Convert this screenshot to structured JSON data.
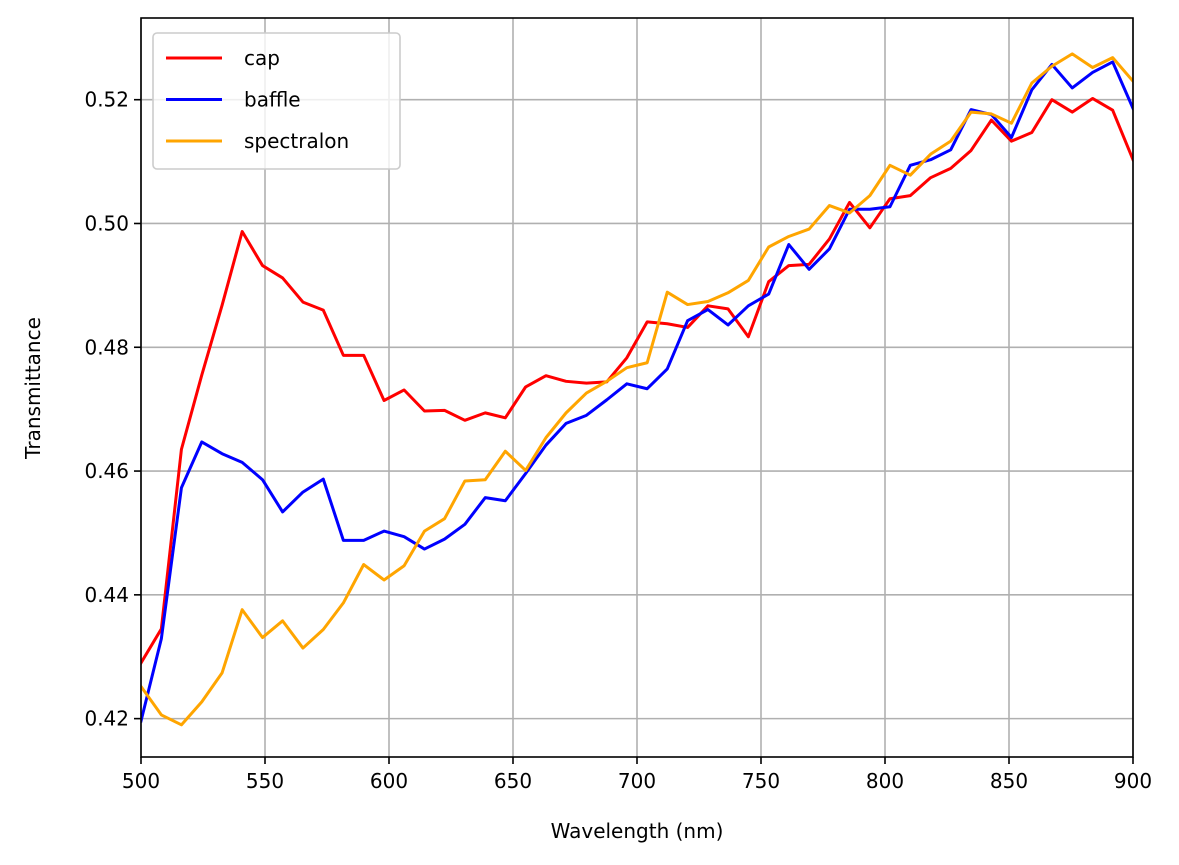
{
  "chart_data": {
    "type": "line",
    "xlabel": "Wavelength (nm)",
    "ylabel": "Transmittance",
    "xlim": [
      500,
      900
    ],
    "ylim": [
      0.4138,
      0.5332
    ],
    "xticks": [
      500,
      550,
      600,
      650,
      700,
      750,
      800,
      850,
      900
    ],
    "yticks": [
      0.42,
      0.44,
      0.46,
      0.48,
      0.5,
      0.52
    ],
    "grid": true,
    "legend_position": "top-left",
    "x": [
      500,
      508.2,
      516.3,
      524.5,
      532.7,
      540.8,
      549,
      557.1,
      565.3,
      573.5,
      581.6,
      589.8,
      598,
      606.1,
      614.3,
      622.4,
      630.6,
      638.8,
      646.9,
      655.1,
      663.3,
      671.4,
      679.6,
      687.8,
      695.9,
      704.1,
      712.2,
      720.4,
      728.6,
      736.7,
      744.9,
      753.1,
      761.2,
      769.4,
      777.6,
      785.7,
      793.9,
      802,
      810.2,
      818.4,
      826.5,
      834.7,
      842.9,
      851,
      859.2,
      867.3,
      875.5,
      883.7,
      891.8,
      900
    ],
    "series": [
      {
        "name": "cap",
        "color": "#ff0000",
        "values": [
          0.429,
          0.4345,
          0.4635,
          0.4755,
          0.4868,
          0.4987,
          0.4932,
          0.4912,
          0.4873,
          0.486,
          0.4787,
          0.4787,
          0.4714,
          0.4731,
          0.4697,
          0.4698,
          0.4682,
          0.4694,
          0.4686,
          0.4736,
          0.4754,
          0.4745,
          0.4742,
          0.4744,
          0.4783,
          0.4841,
          0.4838,
          0.4832,
          0.4867,
          0.4862,
          0.4817,
          0.4906,
          0.4932,
          0.4934,
          0.4975,
          0.5034,
          0.4993,
          0.504,
          0.5045,
          0.5074,
          0.5089,
          0.5118,
          0.5167,
          0.5133,
          0.5147,
          0.52,
          0.518,
          0.5202,
          0.5183,
          0.5103
        ]
      },
      {
        "name": "baffle",
        "color": "#0000ff",
        "values": [
          0.4196,
          0.4329,
          0.4573,
          0.4647,
          0.4628,
          0.4614,
          0.4586,
          0.4534,
          0.4566,
          0.4587,
          0.4488,
          0.4488,
          0.4503,
          0.4494,
          0.4474,
          0.449,
          0.4514,
          0.4557,
          0.4552,
          0.4596,
          0.4642,
          0.4677,
          0.469,
          0.4715,
          0.4741,
          0.4733,
          0.4765,
          0.4843,
          0.4861,
          0.4836,
          0.4867,
          0.4886,
          0.4966,
          0.4926,
          0.4959,
          0.5023,
          0.5023,
          0.5027,
          0.5094,
          0.5103,
          0.5119,
          0.5184,
          0.5176,
          0.5139,
          0.5216,
          0.5257,
          0.5219,
          0.5244,
          0.5261,
          0.5186
        ]
      },
      {
        "name": "spectralon",
        "color": "#ffa500",
        "values": [
          0.4252,
          0.4206,
          0.419,
          0.4227,
          0.4274,
          0.4376,
          0.4331,
          0.4358,
          0.4314,
          0.4344,
          0.4387,
          0.4449,
          0.4424,
          0.4447,
          0.4503,
          0.4523,
          0.4584,
          0.4586,
          0.4632,
          0.4601,
          0.4654,
          0.4694,
          0.4726,
          0.4745,
          0.4767,
          0.4775,
          0.4889,
          0.4869,
          0.4874,
          0.4888,
          0.4908,
          0.4962,
          0.4979,
          0.4991,
          0.5029,
          0.5017,
          0.5045,
          0.5094,
          0.5078,
          0.5112,
          0.5133,
          0.518,
          0.5177,
          0.5162,
          0.5227,
          0.5254,
          0.5274,
          0.5252,
          0.5268,
          0.523
        ]
      }
    ]
  }
}
